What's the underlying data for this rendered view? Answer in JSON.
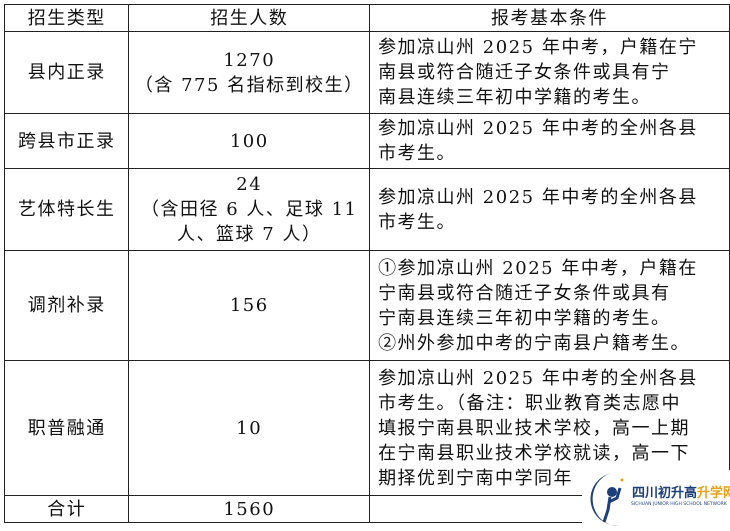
{
  "table": {
    "headers": [
      "招生类型",
      "招生人数",
      "报考基本条件"
    ],
    "rows": [
      {
        "type": "县内正录",
        "count": [
          "1270",
          "（含 775 名指标到校生）"
        ],
        "cond": [
          "参加凉山州 2025 年中考，户籍在宁",
          "南县或符合随迁子女条件或具有宁",
          "南县连续三年初中学籍的考生。"
        ]
      },
      {
        "type": "跨县市正录",
        "count": [
          "100"
        ],
        "cond": [
          "参加凉山州 2025 年中考的全州各县",
          "市考生。"
        ]
      },
      {
        "type": "艺体特长生",
        "count": [
          "24",
          "（含田径 6 人、足球 11",
          "人、篮球 7 人）"
        ],
        "cond": [
          "参加凉山州 2025 年中考的全州各县",
          "市考生。"
        ]
      },
      {
        "type": "调剂补录",
        "count": [
          "156"
        ],
        "cond": [
          "①参加凉山州 2025 年中考，户籍在",
          "宁南县或符合随迁子女条件或具有",
          "宁南县连续三年初中学籍的考生。",
          "②州外参加中考的宁南县户籍考生。"
        ]
      },
      {
        "type": "职普融通",
        "count": [
          "10"
        ],
        "cond": [
          "参加凉山州 2025 年中考的全州各县",
          "市考生。（备注：职业教育类志愿中",
          "填报宁南县职业技术学校，高一上期",
          "在宁南县职业技术学校就读，高一下",
          "期择优到宁南中学同年"
        ]
      }
    ],
    "total": {
      "label": "合计",
      "count": "1560"
    }
  },
  "watermark": {
    "name_a": "四川初升高",
    "name_b": "升学网",
    "sub": "SICHUAN JUNIOR HIGH SCHOOL NETWORK",
    "color": "#1d3f7a",
    "accent": "#e8a21a"
  }
}
